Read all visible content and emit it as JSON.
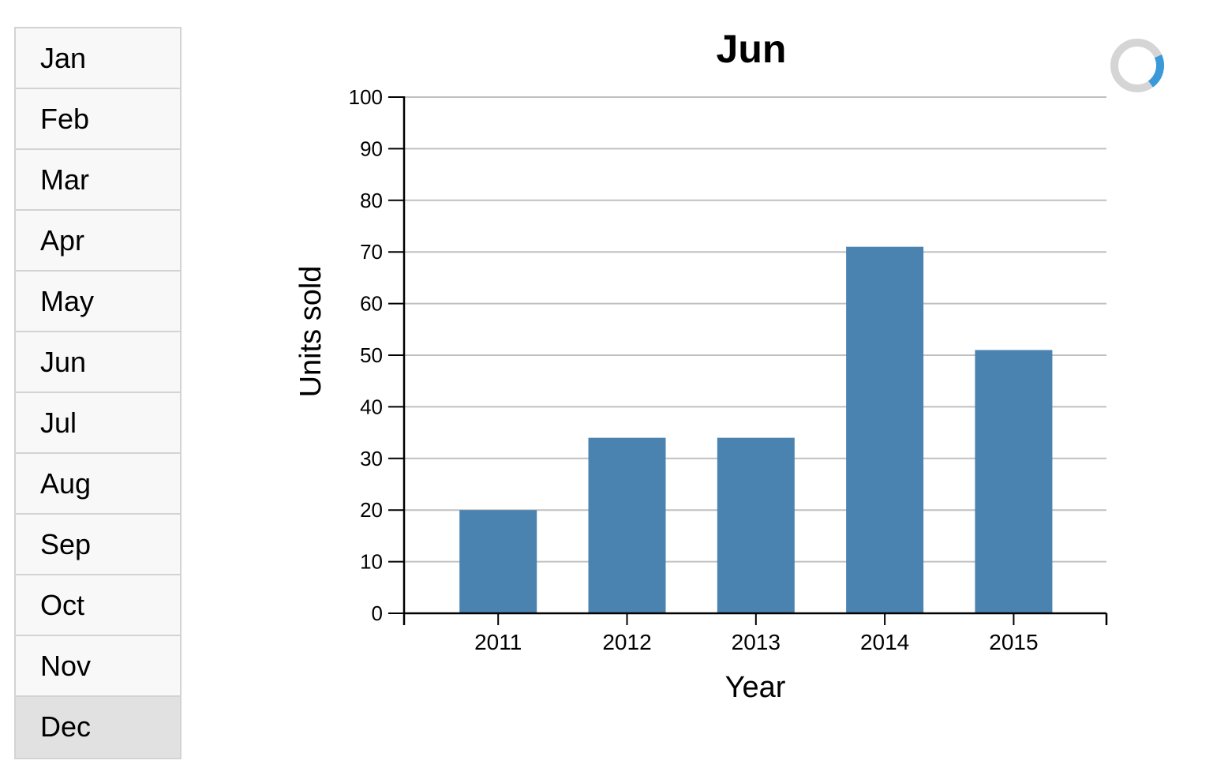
{
  "months": [
    {
      "label": "Jan"
    },
    {
      "label": "Feb"
    },
    {
      "label": "Mar"
    },
    {
      "label": "Apr"
    },
    {
      "label": "May"
    },
    {
      "label": "Jun"
    },
    {
      "label": "Jul"
    },
    {
      "label": "Aug"
    },
    {
      "label": "Sep"
    },
    {
      "label": "Oct"
    },
    {
      "label": "Nov"
    },
    {
      "label": "Dec",
      "active": true
    }
  ],
  "colors": {
    "bar": "#4a82b0",
    "grid": "#c0c0c0",
    "spinner_track": "#d5d5d5",
    "spinner_arc": "#3a9ad9",
    "active_item": "#e1e1e1"
  },
  "chart_data": {
    "type": "bar",
    "title": "Jun",
    "xlabel": "Year",
    "ylabel": "Units sold",
    "categories": [
      "2011",
      "2012",
      "2013",
      "2014",
      "2015"
    ],
    "values": [
      20,
      34,
      34,
      71,
      51
    ],
    "ylim": [
      0,
      100
    ],
    "yticks": [
      0,
      10,
      20,
      30,
      40,
      50,
      60,
      70,
      80,
      90,
      100
    ],
    "grid": true
  },
  "spinner": {
    "icon": "loading-spinner-icon"
  }
}
